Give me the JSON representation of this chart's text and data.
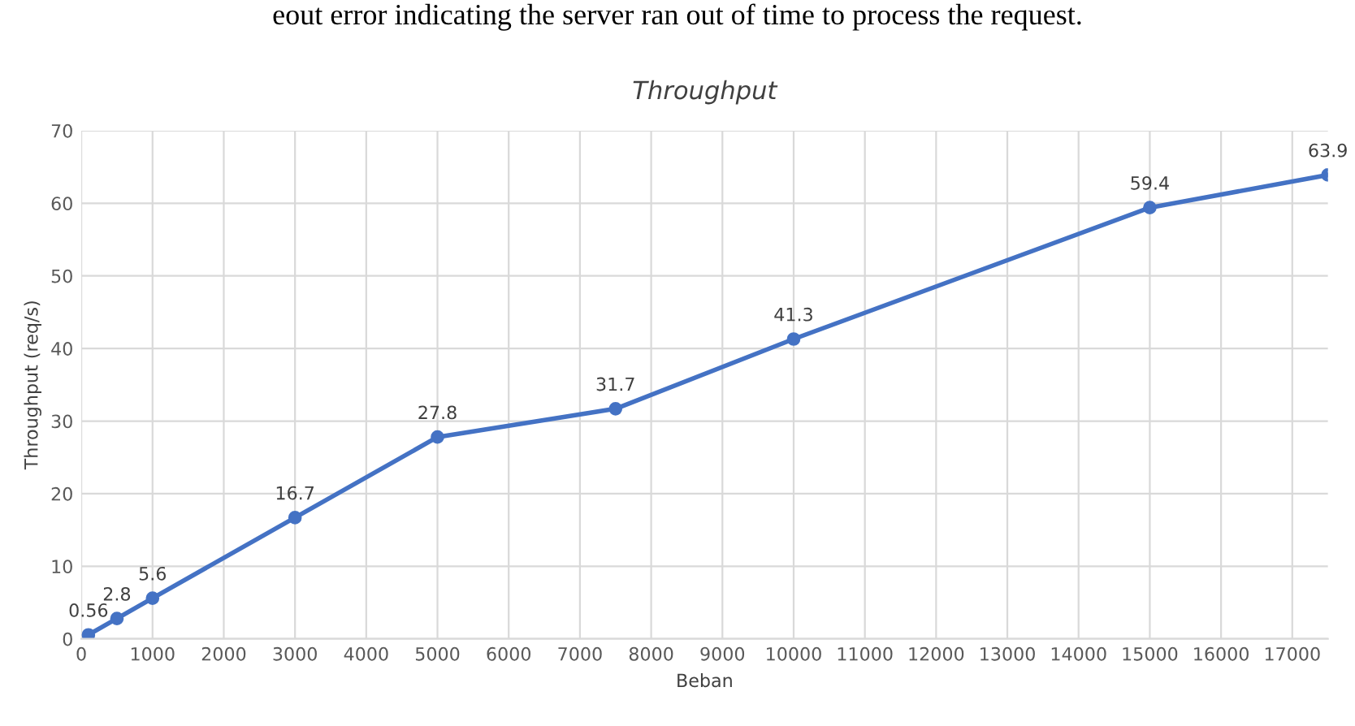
{
  "chart_data": {
    "type": "line",
    "title": "Throughput",
    "xlabel": "Beban",
    "ylabel": "Throughput (req/s)",
    "annotations": [
      "eout error indicating the server ran out of time to process the request."
    ],
    "x": [
      100,
      500,
      1000,
      3000,
      5000,
      7500,
      10000,
      15000,
      17500
    ],
    "series": [
      {
        "color": "#4472c4",
        "values": [
          0.56,
          2.8,
          5.6,
          16.7,
          27.8,
          31.7,
          41.3,
          59.4,
          63.9
        ]
      }
    ],
    "xlim": [
      0,
      17500
    ],
    "xticks": [
      0,
      1000,
      2000,
      3000,
      4000,
      5000,
      6000,
      7000,
      8000,
      9000,
      10000,
      11000,
      12000,
      13000,
      14000,
      15000,
      16000,
      17000
    ],
    "ylim": [
      0,
      70
    ],
    "yticks": [
      0,
      10,
      20,
      30,
      40,
      50,
      60,
      70
    ],
    "grid": true,
    "marker": "circle",
    "line_style": "solid",
    "data_labels": true,
    "legend": false
  }
}
